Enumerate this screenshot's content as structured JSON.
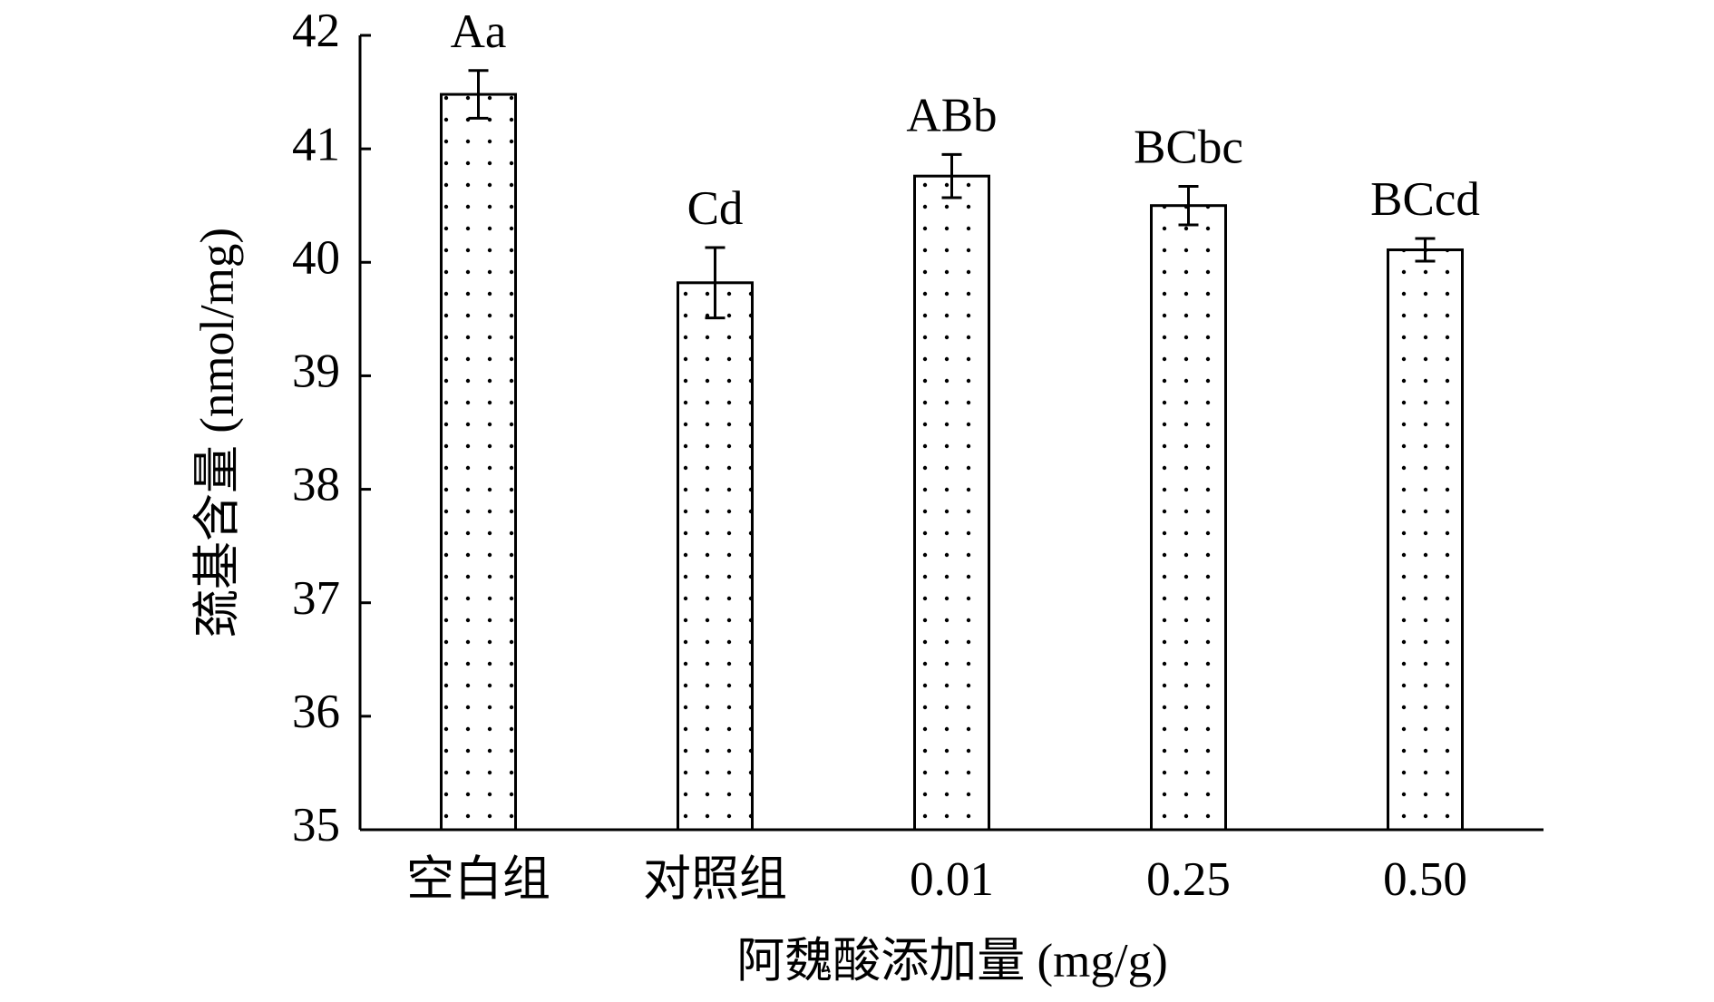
{
  "chart_data": {
    "type": "bar",
    "x_label": "阿魏酸添加量 (mg/g)",
    "y_label": "巯基含量 (nmol/mg)",
    "categories": [
      "空白组",
      "对照组",
      "0.01",
      "0.25",
      "0.50"
    ],
    "values": [
      41.48,
      39.82,
      40.76,
      40.5,
      40.11
    ],
    "errors": [
      0.21,
      0.31,
      0.19,
      0.17,
      0.1
    ],
    "annotations": [
      "Aa",
      "Cd",
      "ABb",
      "BCbc",
      "BCcd"
    ],
    "color": "#000000",
    "ylim": [
      35,
      42
    ],
    "yticks": [
      35,
      36,
      37,
      38,
      39,
      40,
      41,
      42
    ]
  }
}
